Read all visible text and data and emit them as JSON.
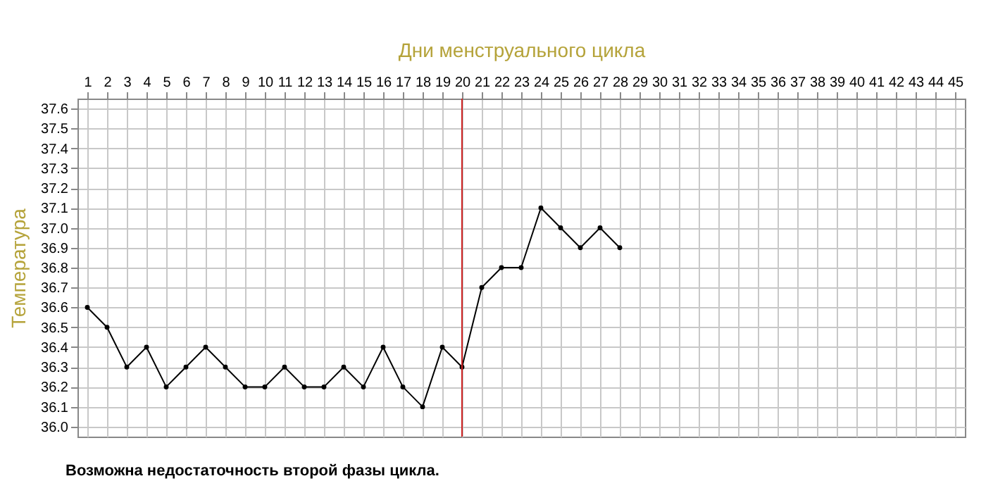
{
  "chart_data": {
    "type": "line",
    "xlabel": "Дни менструального цикла",
    "ylabel": "Температура",
    "x": [
      1,
      2,
      3,
      4,
      5,
      6,
      7,
      8,
      9,
      10,
      11,
      12,
      13,
      14,
      15,
      16,
      17,
      18,
      19,
      20,
      21,
      22,
      23,
      24,
      25,
      26,
      27,
      28
    ],
    "series": [
      {
        "color": "#000000",
        "values": [
          36.6,
          36.5,
          36.3,
          36.4,
          36.2,
          36.3,
          36.4,
          36.3,
          36.2,
          36.2,
          36.3,
          36.2,
          36.2,
          36.3,
          36.2,
          36.4,
          36.2,
          36.1,
          36.4,
          36.3,
          36.7,
          36.8,
          36.8,
          37.1,
          37.0,
          36.9,
          37.0,
          36.9
        ]
      }
    ],
    "xlim": [
      0.5,
      45.5
    ],
    "xticks": [
      1,
      2,
      3,
      4,
      5,
      6,
      7,
      8,
      9,
      10,
      11,
      12,
      13,
      14,
      15,
      16,
      17,
      18,
      19,
      20,
      21,
      22,
      23,
      24,
      25,
      26,
      27,
      28,
      29,
      30,
      31,
      32,
      33,
      34,
      35,
      36,
      37,
      38,
      39,
      40,
      41,
      42,
      43,
      44,
      45
    ],
    "ylim": [
      35.95,
      37.65
    ],
    "yticks": [
      {
        "value": 36.0,
        "label": "36.0"
      },
      36.1,
      36.2,
      36.3,
      36.4,
      36.5,
      36.6,
      36.7,
      36.8,
      36.9,
      {
        "value": 37.0,
        "label": "37.0"
      },
      37.1,
      37.2,
      37.3,
      37.4,
      37.5,
      37.6
    ],
    "ref_lines": [
      {
        "axis": "x",
        "value": 20,
        "color": "#cc2222"
      }
    ],
    "annotations": [
      "Возможна недостаточность второй фазы цикла."
    ],
    "grid": true,
    "marker": "circle",
    "line_style": "solid"
  }
}
